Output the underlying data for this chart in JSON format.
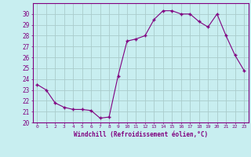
{
  "x": [
    0,
    1,
    2,
    3,
    4,
    5,
    6,
    7,
    8,
    9,
    10,
    11,
    12,
    13,
    14,
    15,
    16,
    17,
    18,
    19,
    20,
    21,
    22,
    23
  ],
  "y": [
    23.5,
    23.0,
    21.8,
    21.4,
    21.2,
    21.2,
    21.1,
    20.4,
    20.5,
    24.3,
    27.5,
    27.7,
    28.0,
    29.5,
    30.3,
    30.3,
    30.0,
    30.0,
    29.3,
    28.8,
    30.0,
    28.0,
    26.2,
    24.8
  ],
  "line_color": "#800080",
  "marker_color": "#800080",
  "bg_color": "#c8eef0",
  "grid_color": "#aacccc",
  "xlabel": "Windchill (Refroidissement éolien,°C)",
  "xlabel_color": "#800080",
  "xtick_labels": [
    "0",
    "1",
    "2",
    "3",
    "4",
    "5",
    "6",
    "7",
    "8",
    "9",
    "10",
    "11",
    "12",
    "13",
    "14",
    "15",
    "16",
    "17",
    "18",
    "19",
    "20",
    "21",
    "22",
    "23"
  ],
  "ylim": [
    20,
    31
  ],
  "xlim": [
    -0.5,
    23.5
  ],
  "yticks": [
    20,
    21,
    22,
    23,
    24,
    25,
    26,
    27,
    28,
    29,
    30
  ],
  "tick_color": "#800080",
  "font_family": "monospace"
}
